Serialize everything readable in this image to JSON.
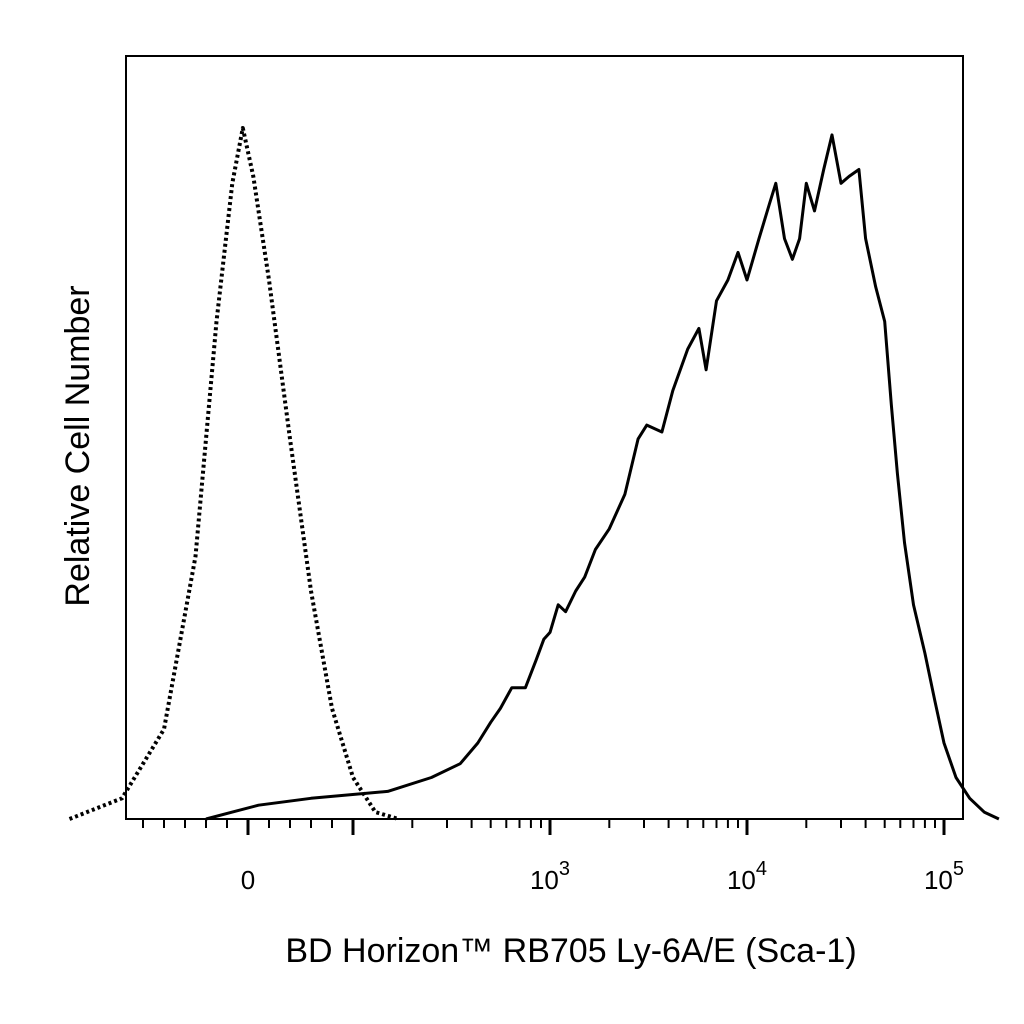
{
  "chart_data": {
    "type": "line",
    "title": "",
    "xlabel": "BD Horizon™ RB705 Ly-6A/E (Sca-1)",
    "ylabel": "Relative Cell Number",
    "x_scale": "biexponential",
    "xlim": [
      -300,
      200000
    ],
    "ylim": [
      0,
      100
    ],
    "grid": false,
    "legend": "none",
    "x_tick_labels": [
      {
        "value": 0,
        "base": "0",
        "exp": ""
      },
      {
        "value": 1000,
        "base": "10",
        "exp": "3"
      },
      {
        "value": 10000,
        "base": "10",
        "exp": "4"
      },
      {
        "value": 100000,
        "base": "10",
        "exp": "5"
      }
    ],
    "series": [
      {
        "style": "dotted",
        "points": [
          [
            -170,
            0
          ],
          [
            -120,
            3
          ],
          [
            -80,
            13
          ],
          [
            -50,
            38
          ],
          [
            -30,
            72
          ],
          [
            -15,
            92
          ],
          [
            -5,
            100
          ],
          [
            5,
            93
          ],
          [
            20,
            78
          ],
          [
            40,
            55
          ],
          [
            60,
            33
          ],
          [
            80,
            16
          ],
          [
            100,
            6
          ],
          [
            130,
            1
          ],
          [
            170,
            0
          ]
        ]
      },
      {
        "style": "solid",
        "points": [
          [
            -40,
            0
          ],
          [
            -15,
            1
          ],
          [
            10,
            2
          ],
          [
            60,
            3
          ],
          [
            150,
            4
          ],
          [
            250,
            6
          ],
          [
            350,
            8
          ],
          [
            430,
            11
          ],
          [
            500,
            14
          ],
          [
            560,
            16
          ],
          [
            640,
            19
          ],
          [
            750,
            19
          ],
          [
            850,
            23
          ],
          [
            930,
            26
          ],
          [
            1000,
            27
          ],
          [
            1100,
            31
          ],
          [
            1200,
            30
          ],
          [
            1350,
            33
          ],
          [
            1500,
            35
          ],
          [
            1700,
            39
          ],
          [
            2000,
            42
          ],
          [
            2400,
            47
          ],
          [
            2800,
            55
          ],
          [
            3100,
            57
          ],
          [
            3700,
            56
          ],
          [
            4200,
            62
          ],
          [
            5000,
            68
          ],
          [
            5700,
            71
          ],
          [
            6200,
            65
          ],
          [
            7000,
            75
          ],
          [
            8000,
            78
          ],
          [
            9000,
            82
          ],
          [
            10000,
            78
          ],
          [
            11500,
            84
          ],
          [
            13000,
            89
          ],
          [
            14000,
            92
          ],
          [
            15500,
            84
          ],
          [
            17000,
            81
          ],
          [
            18500,
            84
          ],
          [
            20000,
            92
          ],
          [
            22000,
            88
          ],
          [
            24500,
            94
          ],
          [
            27000,
            99
          ],
          [
            30000,
            92
          ],
          [
            33000,
            93
          ],
          [
            37000,
            94
          ],
          [
            40000,
            84
          ],
          [
            45000,
            77
          ],
          [
            50000,
            72
          ],
          [
            54000,
            60
          ],
          [
            58000,
            50
          ],
          [
            63000,
            40
          ],
          [
            70000,
            31
          ],
          [
            80000,
            24
          ],
          [
            90000,
            17
          ],
          [
            100000,
            11
          ],
          [
            115000,
            6
          ],
          [
            135000,
            3
          ],
          [
            160000,
            1
          ],
          [
            190000,
            0
          ]
        ]
      }
    ]
  }
}
